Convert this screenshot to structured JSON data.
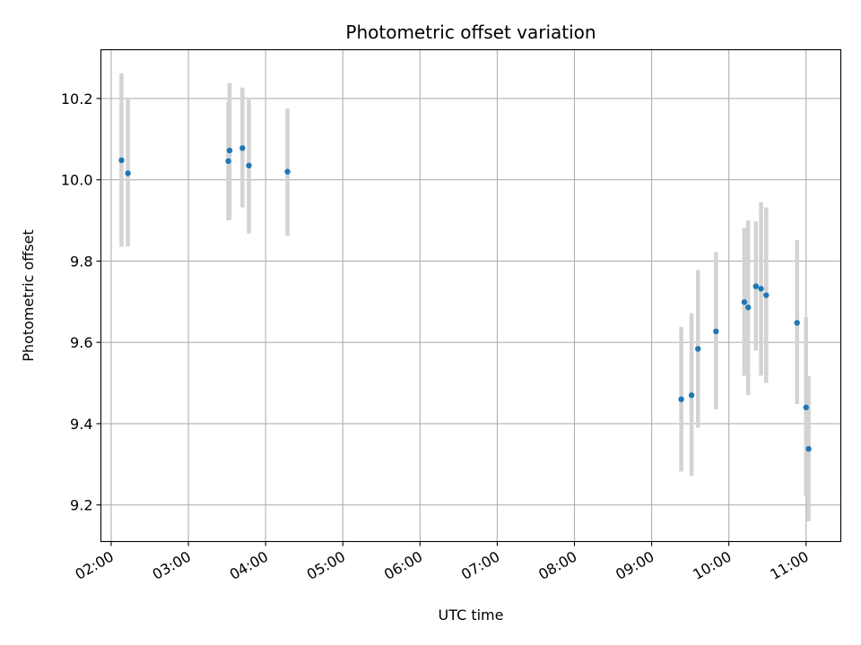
{
  "chart_data": {
    "type": "scatter",
    "title": "Photometric offset variation",
    "xlabel": "UTC time",
    "ylabel": "Photometric offset",
    "x_unit": "UTC time (HH:MM)",
    "xlim": [
      "01:52",
      "11:27"
    ],
    "ylim": [
      9.11,
      10.32
    ],
    "x_ticks": [
      "02:00",
      "03:00",
      "04:00",
      "05:00",
      "06:00",
      "07:00",
      "08:00",
      "09:00",
      "10:00",
      "11:00"
    ],
    "y_ticks": [
      9.2,
      9.4,
      9.6,
      9.8,
      10.0,
      10.2
    ],
    "grid": true,
    "marker_color": "#1f77b4",
    "errorbar_color": "#d3d3d3",
    "series": [
      {
        "points": [
          {
            "x": "02:08",
            "y": 10.048,
            "lo": 9.835,
            "hi": 10.262
          },
          {
            "x": "02:13",
            "y": 10.016,
            "lo": 9.836,
            "hi": 10.198
          },
          {
            "x": "03:31",
            "y": 10.046,
            "lo": 9.9,
            "hi": 10.192
          },
          {
            "x": "03:32",
            "y": 10.072,
            "lo": 9.902,
            "hi": 10.238
          },
          {
            "x": "03:42",
            "y": 10.078,
            "lo": 9.932,
            "hi": 10.227
          },
          {
            "x": "03:47",
            "y": 10.035,
            "lo": 9.868,
            "hi": 10.197
          },
          {
            "x": "04:17",
            "y": 10.02,
            "lo": 9.862,
            "hi": 10.175
          },
          {
            "x": "09:23",
            "y": 9.46,
            "lo": 9.282,
            "hi": 9.638
          },
          {
            "x": "09:31",
            "y": 9.47,
            "lo": 9.272,
            "hi": 9.672
          },
          {
            "x": "09:36",
            "y": 9.584,
            "lo": 9.39,
            "hi": 9.778
          },
          {
            "x": "09:50",
            "y": 9.627,
            "lo": 9.435,
            "hi": 9.822
          },
          {
            "x": "10:12",
            "y": 9.699,
            "lo": 9.518,
            "hi": 9.882
          },
          {
            "x": "10:15",
            "y": 9.686,
            "lo": 9.47,
            "hi": 9.9
          },
          {
            "x": "10:21",
            "y": 9.738,
            "lo": 9.58,
            "hi": 9.898
          },
          {
            "x": "10:25",
            "y": 9.732,
            "lo": 9.518,
            "hi": 9.945
          },
          {
            "x": "10:29",
            "y": 9.716,
            "lo": 9.5,
            "hi": 9.932
          },
          {
            "x": "10:53",
            "y": 9.648,
            "lo": 9.448,
            "hi": 9.852
          },
          {
            "x": "11:00",
            "y": 9.44,
            "lo": 9.222,
            "hi": 9.662
          },
          {
            "x": "11:02",
            "y": 9.338,
            "lo": 9.16,
            "hi": 9.517
          }
        ]
      }
    ]
  }
}
